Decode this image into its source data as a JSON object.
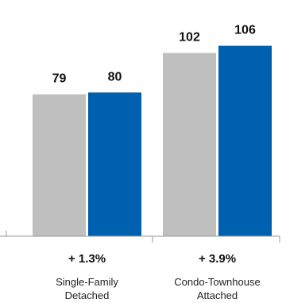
{
  "chart_data": {
    "type": "bar",
    "categories": [
      {
        "lines": [
          "Single-Family",
          "Detached"
        ],
        "change": "+ 1.3%"
      },
      {
        "lines": [
          "Condo-Townhouse",
          "Attached"
        ],
        "change": "+ 3.9%"
      }
    ],
    "series": [
      {
        "values": [
          79,
          102
        ],
        "color": "#bfbfbf"
      },
      {
        "values": [
          80,
          106
        ],
        "color": "#0060b0"
      }
    ],
    "ylim": [
      0,
      116
    ],
    "grid": false,
    "legend": "none"
  }
}
